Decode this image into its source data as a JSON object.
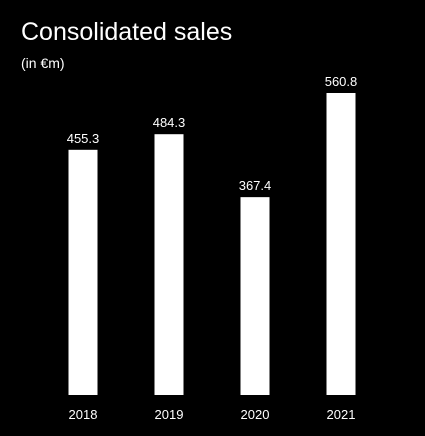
{
  "chart_data": {
    "type": "bar",
    "title": "Consolidated sales",
    "subtitle": "(in €m)",
    "categories": [
      "2018",
      "2019",
      "2020",
      "2021"
    ],
    "values": [
      455.3,
      484.3,
      367.4,
      560.8
    ],
    "value_labels": [
      "455.3",
      "484.3",
      "367.4",
      "560.8"
    ],
    "bar_color": "#ffffff",
    "background": "#000000",
    "grid": false,
    "legend": "none"
  }
}
